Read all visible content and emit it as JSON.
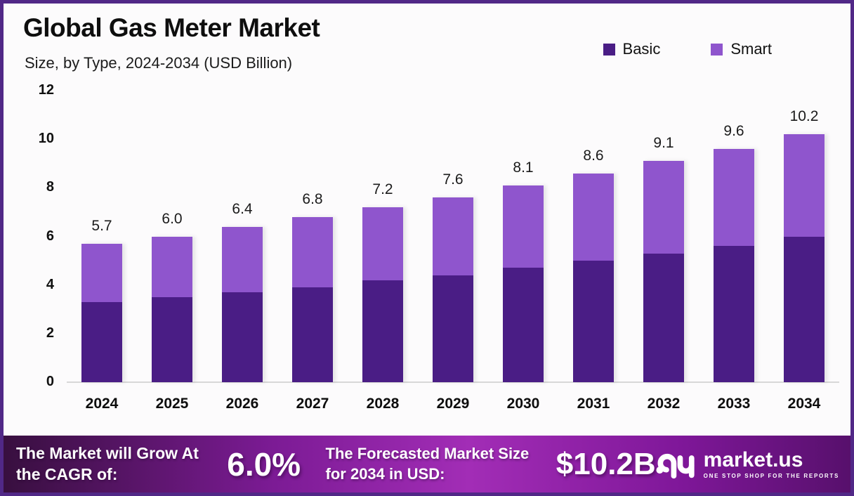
{
  "header": {
    "title": "Global Gas Meter Market",
    "subtitle": "Size, by Type, 2024-2034 (USD Billion)"
  },
  "chart_data": {
    "type": "bar",
    "stacked": true,
    "title": "Global Gas Meter Market",
    "subtitle": "Size, by Type, 2024-2034 (USD Billion)",
    "categories": [
      "2024",
      "2025",
      "2026",
      "2027",
      "2028",
      "2029",
      "2030",
      "2031",
      "2032",
      "2033",
      "2034"
    ],
    "series": [
      {
        "name": "Basic",
        "color": "#4a1d85",
        "values": [
          3.3,
          3.5,
          3.7,
          3.9,
          4.2,
          4.4,
          4.7,
          5.0,
          5.3,
          5.6,
          6.0
        ]
      },
      {
        "name": "Smart",
        "color": "#8f55cd",
        "values": [
          2.4,
          2.5,
          2.7,
          2.9,
          3.0,
          3.2,
          3.4,
          3.6,
          3.8,
          4.0,
          4.2
        ]
      }
    ],
    "totals": [
      5.7,
      6.0,
      6.4,
      6.8,
      7.2,
      7.6,
      8.1,
      8.6,
      9.1,
      9.6,
      10.2
    ],
    "ylabel": "",
    "xlabel": "",
    "ylim": [
      0,
      12
    ],
    "yticks": [
      0,
      2,
      4,
      6,
      8,
      10,
      12
    ],
    "grid": false,
    "legend_position": "top-right"
  },
  "footer": {
    "cagr_label": "The Market will Grow At the CAGR of:",
    "cagr_value": "6.0%",
    "forecast_label": "The Forecasted Market Size for 2034 in USD:",
    "forecast_value": "$10.2B",
    "brand_name": "market.us",
    "brand_tagline": "ONE STOP SHOP FOR THE REPORTS"
  },
  "colors": {
    "frame_border": "#512887",
    "basic": "#4a1d85",
    "smart": "#8f55cd",
    "axis_line": "#d8d8d8",
    "banner_gradient": [
      "#380f3f",
      "#a22db6",
      "#57106c"
    ]
  }
}
